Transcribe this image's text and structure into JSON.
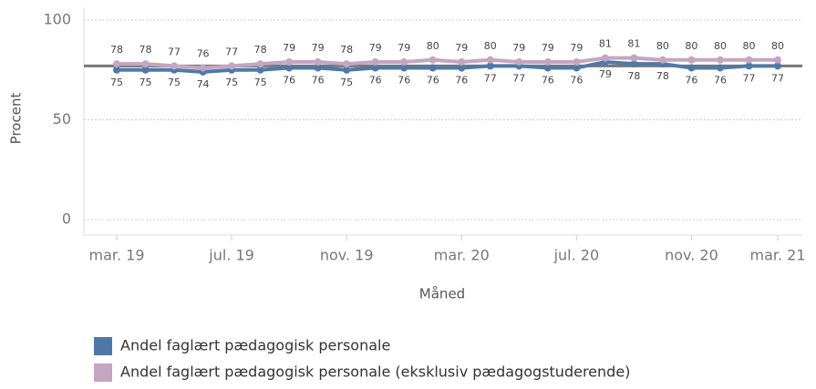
{
  "chart_data": {
    "type": "line",
    "y_label": "Procent",
    "x_label": "Måned",
    "categories": [
      "mar. 19",
      null,
      null,
      null,
      "jul. 19",
      null,
      null,
      null,
      "nov. 19",
      null,
      null,
      null,
      "mar. 20",
      null,
      null,
      null,
      "jul. 20",
      null,
      null,
      null,
      "nov. 20",
      null,
      null,
      "mar. 21"
    ],
    "series": [
      {
        "name": "Andel faglært pædagogisk personale",
        "color": "#4e79a7",
        "values": [
          75,
          75,
          75,
          74,
          75,
          75,
          76,
          76,
          75,
          76,
          76,
          76,
          76,
          77,
          77,
          76,
          76,
          79,
          78,
          78,
          76,
          76,
          77,
          77
        ]
      },
      {
        "name": "Andel faglært pædagogisk personale (eksklusiv pædagogstuderende)",
        "color": "#c4a5c2",
        "values": [
          78,
          78,
          77,
          76,
          77,
          78,
          79,
          79,
          78,
          79,
          79,
          80,
          79,
          80,
          79,
          79,
          79,
          81,
          81,
          80,
          80,
          80,
          80,
          80
        ]
      }
    ],
    "reference_line": 77,
    "ylim": [
      0,
      100
    ],
    "yticks": [
      0,
      50,
      100
    ],
    "grid": true
  }
}
